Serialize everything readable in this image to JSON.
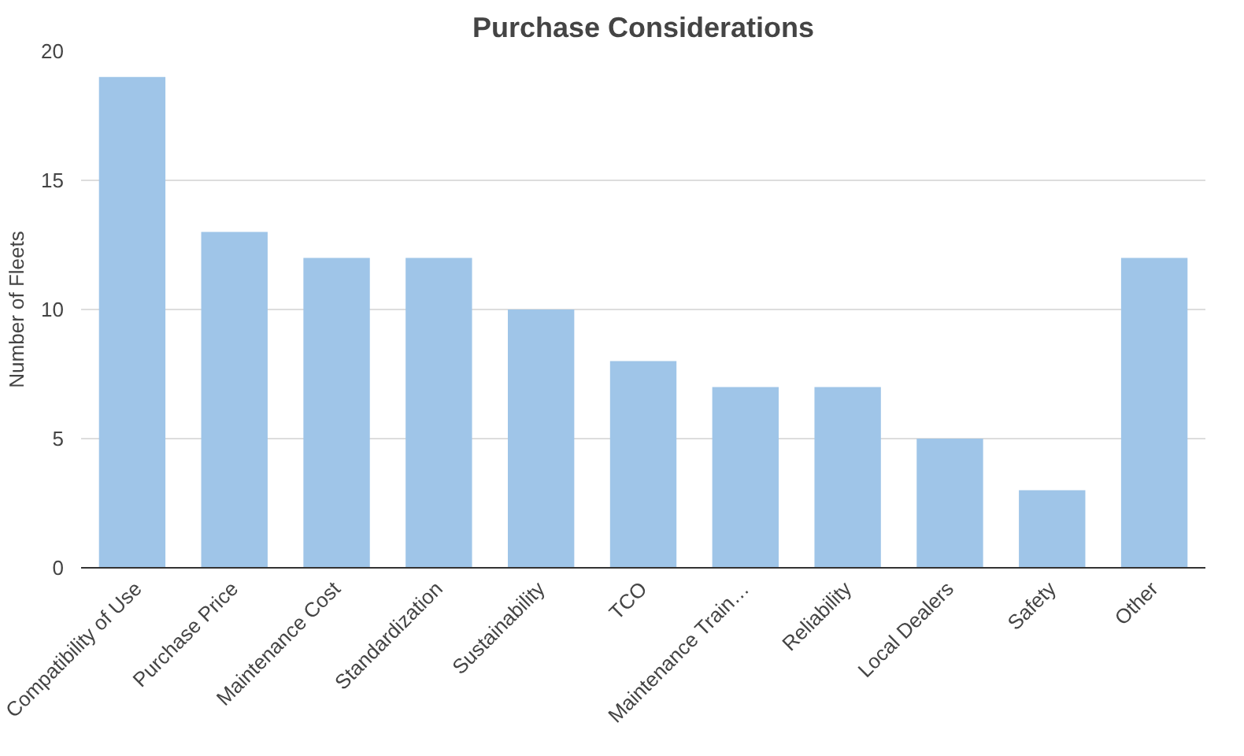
{
  "chart_data": {
    "type": "bar",
    "title": "Purchase Considerations",
    "ylabel": "Number of Fleets",
    "categories": [
      "Compatibility of Use",
      "Purchase Price",
      "Maintenance Cost",
      "Standardization",
      "Sustainability",
      "TCO",
      "Maintenance Train…",
      "Reliability",
      "Local Dealers",
      "Safety",
      "Other"
    ],
    "values": [
      19,
      13,
      12,
      12,
      10,
      8,
      7,
      7,
      5,
      3,
      12
    ],
    "color": "#9fc5e8",
    "ylim": [
      0,
      20
    ],
    "yticks": [
      0,
      5,
      10,
      15,
      20
    ],
    "grid": "y"
  }
}
